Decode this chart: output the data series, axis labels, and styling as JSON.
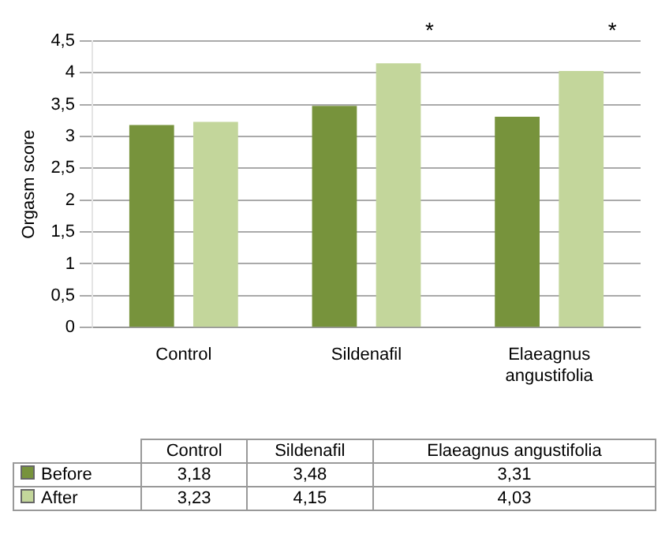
{
  "chart_data": {
    "type": "bar",
    "ylabel": "Orgasm score",
    "categories": [
      "Control",
      "Sildenafil",
      "Elaeagnus angustifolia"
    ],
    "series": [
      {
        "name": "Before",
        "color": "#77933c",
        "values": [
          3.18,
          3.48,
          3.31
        ],
        "value_labels": [
          "3,18",
          "3,48",
          "3,31"
        ]
      },
      {
        "name": "After",
        "color": "#c3d69b",
        "values": [
          3.23,
          4.15,
          4.03
        ],
        "value_labels": [
          "3,23",
          "4,15",
          "4,03"
        ]
      }
    ],
    "ylim": [
      0,
      4.5
    ],
    "yticks": [
      0,
      {
        "value": 0.5,
        "label": "0,5"
      },
      1,
      {
        "value": 1.5,
        "label": "1,5"
      },
      2,
      {
        "value": 2.5,
        "label": "2,5"
      },
      3,
      {
        "value": 3.5,
        "label": "3,5"
      },
      4,
      {
        "value": 4.5,
        "label": "4,5"
      }
    ],
    "grid": "y",
    "legend": "bottom",
    "annotations": [
      "*",
      "*"
    ]
  }
}
